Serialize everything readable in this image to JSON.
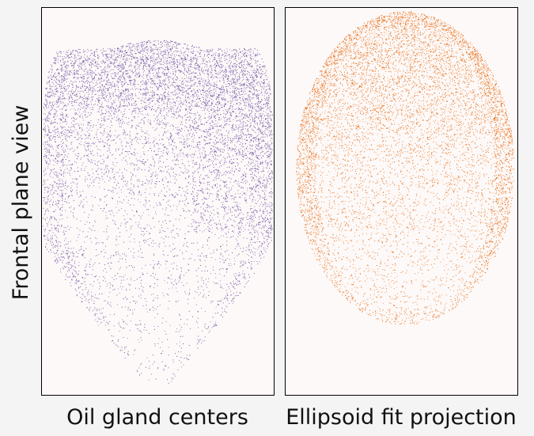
{
  "figure": {
    "ylabel": "Frontal plane view",
    "background": "#f4f4f4",
    "panel_background": "#fdf9f8"
  },
  "chart_data": [
    {
      "type": "scatter",
      "xlabel": "Oil gland centers",
      "color": "#5e3c99",
      "axes_ticks": false,
      "grid": false,
      "shape": "egg-shaped point cloud, densest along the top and upper-right rim, sparse toward the narrow bottom tip",
      "approx_point_count": 9000
    },
    {
      "type": "scatter",
      "xlabel": "Ellipsoid fit projection",
      "color": "#e66101",
      "axes_ticks": false,
      "grid": false,
      "shape": "elliptical point cloud, dense along the rim, sparse toward the bottom",
      "approx_point_count": 9000
    }
  ]
}
